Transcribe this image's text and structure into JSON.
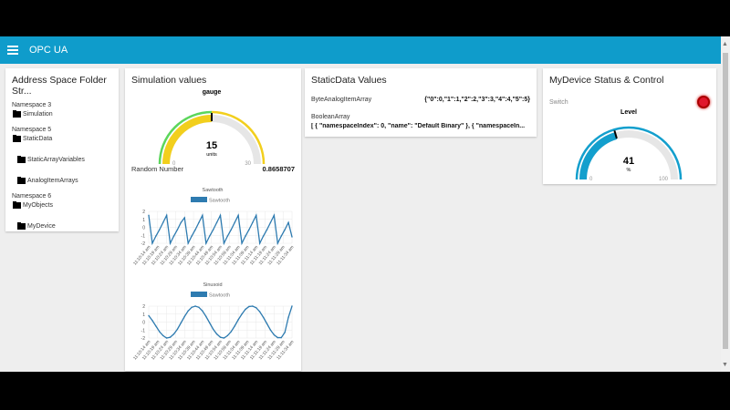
{
  "header": {
    "title": "OPC UA",
    "menu_icon": "hamburger-menu-icon",
    "color": "#0f9ccb"
  },
  "address_space": {
    "title": "Address Space Folder Str...",
    "groups": [
      {
        "namespace": "Namespace 3",
        "folders": [
          {
            "label": "Simulation",
            "indent": false
          }
        ]
      },
      {
        "namespace": "Namespace 5",
        "folders": [
          {
            "label": "StaticData",
            "indent": false
          },
          {
            "label": "StaticArrayVariables",
            "indent": true
          },
          {
            "label": "AnalogItemArrays",
            "indent": true
          }
        ]
      },
      {
        "namespace": "Namespace 6",
        "folders": [
          {
            "label": "MyObjects",
            "indent": false
          },
          {
            "label": "MyDevice",
            "indent": true
          }
        ]
      }
    ]
  },
  "simulation": {
    "title": "Simulation values",
    "gauge": {
      "label": "gauge",
      "value": 15,
      "units": "units",
      "min": 0,
      "max": 30,
      "min_label": "0",
      "max_label": "30",
      "colors": {
        "low": "#5cd65c",
        "high": "#f2cf1d"
      }
    },
    "random_label": "Random Number",
    "random_value": "0.8658707"
  },
  "static_data": {
    "title": "StaticData Values",
    "byte_label": "ByteAnalogItemArray",
    "byte_value": "{\"0\":0,\"1\":1,\"2\":2,\"3\":3,\"4\":4,\"5\":5}",
    "bool_label": "BooleanArray",
    "bool_value": "[ { \"namespaceIndex\": 0, \"name\": \"Default Binary\" }, { \"namespaceIn..."
  },
  "device": {
    "title": "MyDevice Status & Control",
    "switch_label": "Switch",
    "switch_color": "#e0162b",
    "level": {
      "label": "Level",
      "value": 41,
      "units": "%",
      "min": 0,
      "max": 100,
      "min_label": "0",
      "max_label": "100",
      "color": "#139fcd"
    }
  },
  "chart_data": [
    {
      "type": "line",
      "title": "Sawtooth",
      "legend": "Sawtooth",
      "legend_placement": "top",
      "ylim": [
        -2,
        2
      ],
      "yticks": [
        "2",
        "1",
        "0",
        "-1",
        "-2"
      ],
      "grid": true,
      "color": "#2e7bb0",
      "xticks": [
        "11:10:14 am",
        "11:10:19 am",
        "11:10:24 am",
        "11:10:29 am",
        "11:10:34 am",
        "11:10:39 am",
        "11:10:44 am",
        "11:10:49 am",
        "11:10:54 am",
        "11:10:59 am",
        "11:11:04 am",
        "11:11:09 am",
        "11:11:14 am",
        "11:11:19 am",
        "11:11:24 am",
        "11:11:29 am",
        "11:11:34 am"
      ],
      "x": [
        "11:10:14",
        "11:10:16",
        "11:10:18",
        "11:10:20",
        "11:10:22",
        "11:10:24",
        "11:10:26",
        "11:10:28",
        "11:10:30",
        "11:10:32",
        "11:10:34",
        "11:10:36",
        "11:10:38",
        "11:10:40",
        "11:10:42",
        "11:10:44",
        "11:10:46",
        "11:10:48",
        "11:10:50",
        "11:10:52",
        "11:10:54",
        "11:10:56",
        "11:10:58",
        "11:11:00",
        "11:11:02",
        "11:11:04",
        "11:11:06",
        "11:11:08",
        "11:11:10",
        "11:11:12",
        "11:11:14",
        "11:11:16",
        "11:11:18",
        "11:11:20",
        "11:11:22",
        "11:11:24",
        "11:11:26",
        "11:11:28",
        "11:11:30",
        "11:11:32",
        "11:11:34"
      ],
      "values": [
        1.5,
        -2,
        -1.1,
        -0.3,
        0.6,
        1.5,
        -2,
        -1.1,
        -0.3,
        0.6,
        1.2,
        -2,
        -1.1,
        -0.3,
        0.6,
        1.5,
        -2,
        -1.1,
        -0.3,
        0.6,
        1.5,
        -2,
        -1.1,
        -0.3,
        0.6,
        1.5,
        -2,
        -1.1,
        -0.3,
        0.6,
        1.5,
        -2,
        -1.1,
        -0.3,
        0.6,
        1.5,
        -2,
        -1.1,
        -0.3,
        0.6,
        -1.2
      ]
    },
    {
      "type": "line",
      "title": "Sinusoid",
      "legend": "Sawtooth",
      "legend_placement": "top",
      "ylim": [
        -2,
        2
      ],
      "yticks": [
        "2",
        "1",
        "0",
        "-1",
        "-2"
      ],
      "grid": true,
      "color": "#2e7bb0",
      "xticks": [
        "11:10:14 am",
        "11:10:19 am",
        "11:10:24 am",
        "11:10:29 am",
        "11:10:34 am",
        "11:10:39 am",
        "11:10:44 am",
        "11:10:49 am",
        "11:10:54 am",
        "11:10:59 am",
        "11:11:04 am",
        "11:11:09 am",
        "11:11:14 am",
        "11:11:19 am",
        "11:11:24 am",
        "11:11:29 am",
        "11:11:34 am"
      ],
      "x": [
        "11:10:14",
        "11:10:16",
        "11:10:18",
        "11:10:20",
        "11:10:22",
        "11:10:24",
        "11:10:26",
        "11:10:28",
        "11:10:30",
        "11:10:32",
        "11:10:34",
        "11:10:36",
        "11:10:38",
        "11:10:40",
        "11:10:42",
        "11:10:44",
        "11:10:46",
        "11:10:48",
        "11:10:50",
        "11:10:52",
        "11:10:54",
        "11:10:56",
        "11:10:58",
        "11:11:00",
        "11:11:02",
        "11:11:04",
        "11:11:06",
        "11:11:08",
        "11:11:10",
        "11:11:12",
        "11:11:14",
        "11:11:16",
        "11:11:18",
        "11:11:20",
        "11:11:22",
        "11:11:24",
        "11:11:26",
        "11:11:28",
        "11:11:30",
        "11:11:32",
        "11:11:34"
      ],
      "values": [
        0.8,
        0.2,
        -0.5,
        -1.2,
        -1.7,
        -2,
        -1.9,
        -1.5,
        -0.9,
        -0.1,
        0.7,
        1.4,
        1.85,
        2,
        1.85,
        1.4,
        0.7,
        -0.1,
        -0.9,
        -1.5,
        -1.9,
        -2,
        -1.7,
        -1.2,
        -0.5,
        0.3,
        1.0,
        1.6,
        1.95,
        2,
        1.8,
        1.3,
        0.6,
        -0.2,
        -1.0,
        -1.6,
        -1.95,
        -1.95,
        -1.3,
        0.6,
        2
      ]
    }
  ]
}
